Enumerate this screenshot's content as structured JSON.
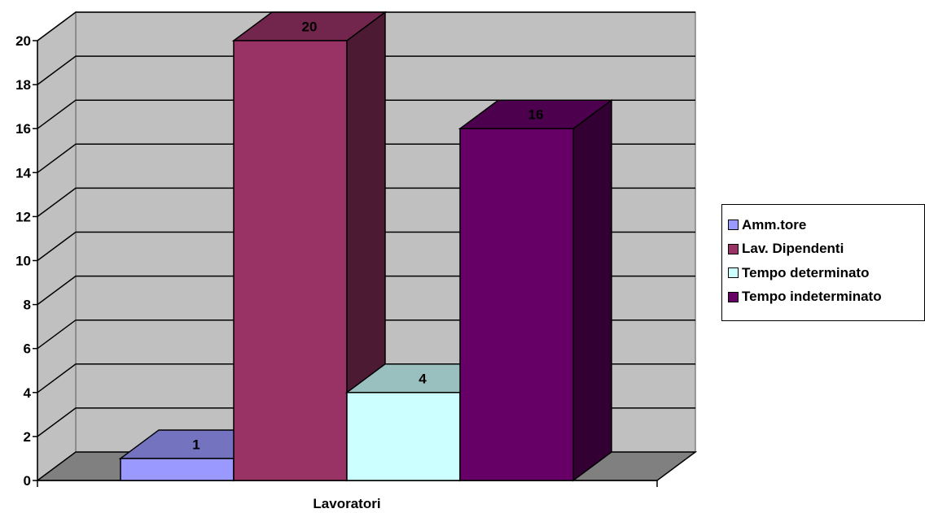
{
  "chart_data": {
    "type": "bar",
    "categories": [
      "Lavoratori"
    ],
    "series": [
      {
        "name": "Amm.tore",
        "values": [
          1
        ],
        "color": "#9999FF"
      },
      {
        "name": "Lav. Dipendenti",
        "values": [
          20
        ],
        "color": "#993366"
      },
      {
        "name": "Tempo determinato",
        "values": [
          4
        ],
        "color": "#CCFFFF"
      },
      {
        "name": "Tempo indeterminato",
        "values": [
          16
        ],
        "color": "#660066"
      }
    ],
    "data_labels": [
      "1",
      "20",
      "4",
      "16"
    ],
    "xlabel": "Lavoratori",
    "ylabel": "",
    "ylim": [
      0,
      20
    ],
    "yticks": [
      "0",
      "2",
      "4",
      "6",
      "8",
      "10",
      "12",
      "14",
      "16",
      "18",
      "20"
    ],
    "grid": true,
    "style": "3d-column",
    "wall_color": "#C0C0C0",
    "floor_color": "#808080",
    "legend_position": "right"
  }
}
